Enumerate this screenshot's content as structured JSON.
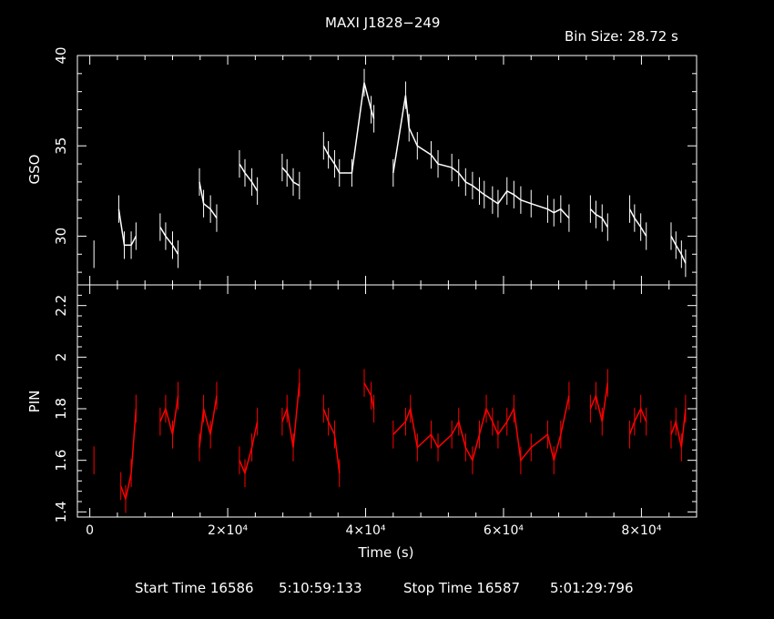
{
  "header": {
    "title": "MAXI J1828−249",
    "bin_size": "Bin Size: 28.72 s"
  },
  "footer": {
    "start_label": "Start Time 16586",
    "start_value": "5:10:59:133",
    "stop_label": "Stop Time 16587",
    "stop_value": "5:01:29:796"
  },
  "colors": {
    "background": "#000000",
    "axes": "#ffffff",
    "gso_series": "#ffffff",
    "pin_series": "#ff0000"
  },
  "chart_data": {
    "type": "line",
    "title": "MAXI J1828−249",
    "xlabel": "Time (s)",
    "xlim": [
      -1800,
      88000
    ],
    "x_ticks": [
      0,
      20000,
      40000,
      60000,
      80000
    ],
    "x_tick_labels": [
      "0",
      "2×10⁴",
      "4×10⁴",
      "6×10⁴",
      "8×10⁴"
    ],
    "panels": [
      {
        "name": "GSO",
        "ylabel": "GSO",
        "ylim": [
          27.3,
          40.0
        ],
        "y_ticks": [
          30,
          35,
          40
        ],
        "y_tick_labels": [
          "30",
          "35",
          "40"
        ],
        "color": "#ffffff",
        "series": [
          {
            "x": [
              600,
              4200,
              5000,
              6000,
              6700,
              10200,
              11000,
              12000,
              12800,
              15900,
              16500,
              17500,
              18400,
              21700,
              22500,
              23500,
              24300,
              27900,
              28600,
              29500,
              30400,
              33900,
              34600,
              35500,
              36200,
              38000,
              39800,
              40800,
              41200,
              44000,
              45800,
              46300,
              47500,
              49500,
              50500,
              52500,
              53500,
              54500,
              55500,
              56500,
              57200,
              58400,
              59200,
              60500,
              61500,
              62500,
              64000,
              66400,
              67300,
              68300,
              69500,
              72600,
              73400,
              74300,
              75100,
              78300,
              79000,
              79900,
              80700,
              84300,
              85000,
              85800,
              86400
            ],
            "y": [
              29.0,
              31.5,
              29.5,
              29.5,
              30.0,
              30.5,
              30.0,
              29.5,
              29.0,
              33.0,
              31.8,
              31.5,
              31.0,
              34.0,
              33.5,
              33.0,
              32.5,
              33.8,
              33.5,
              33.0,
              32.8,
              35.0,
              34.5,
              34.0,
              33.5,
              33.5,
              38.5,
              37.0,
              36.5,
              33.5,
              37.8,
              36.0,
              35.0,
              34.5,
              34.0,
              33.8,
              33.5,
              33.0,
              32.8,
              32.5,
              32.3,
              32.0,
              31.8,
              32.5,
              32.3,
              32.0,
              31.8,
              31.5,
              31.3,
              31.5,
              31.0,
              31.5,
              31.2,
              31.0,
              30.5,
              31.5,
              31.0,
              30.5,
              30.0,
              30.0,
              29.5,
              29.0,
              28.5
            ]
          }
        ]
      },
      {
        "name": "PIN",
        "ylabel": "PIN",
        "ylim": [
          1.38,
          2.28
        ],
        "y_ticks": [
          1.4,
          1.6,
          1.8,
          2.0,
          2.2
        ],
        "y_tick_labels": [
          "1.4",
          "1.6",
          "1.8",
          "2",
          "2.2"
        ],
        "color": "#ff0000",
        "series": [
          {
            "x": [
              600,
              4500,
              5200,
              6000,
              6700,
              10200,
              11000,
              12000,
              12800,
              15900,
              16500,
              17500,
              18400,
              21700,
              22500,
              23500,
              24300,
              27900,
              28600,
              29500,
              30400,
              33900,
              34600,
              35500,
              36200,
              39800,
              40800,
              41200,
              44000,
              45800,
              46500,
              47500,
              49500,
              50500,
              52500,
              53500,
              54500,
              55500,
              56500,
              57500,
              58400,
              59200,
              60500,
              61500,
              62500,
              64000,
              66400,
              67300,
              68300,
              69500,
              72600,
              73400,
              74300,
              75100,
              78300,
              79000,
              79900,
              80700,
              84300,
              85000,
              85800,
              86400
            ],
            "y": [
              1.6,
              1.5,
              1.45,
              1.55,
              1.8,
              1.75,
              1.8,
              1.7,
              1.85,
              1.65,
              1.8,
              1.7,
              1.85,
              1.6,
              1.55,
              1.65,
              1.75,
              1.75,
              1.8,
              1.65,
              1.9,
              1.8,
              1.75,
              1.7,
              1.55,
              1.9,
              1.85,
              1.8,
              1.7,
              1.75,
              1.8,
              1.65,
              1.7,
              1.65,
              1.7,
              1.75,
              1.65,
              1.6,
              1.7,
              1.8,
              1.75,
              1.7,
              1.75,
              1.8,
              1.6,
              1.65,
              1.7,
              1.6,
              1.7,
              1.85,
              1.8,
              1.85,
              1.75,
              1.9,
              1.7,
              1.75,
              1.8,
              1.75,
              1.7,
              1.75,
              1.65,
              1.8
            ]
          }
        ]
      }
    ]
  }
}
